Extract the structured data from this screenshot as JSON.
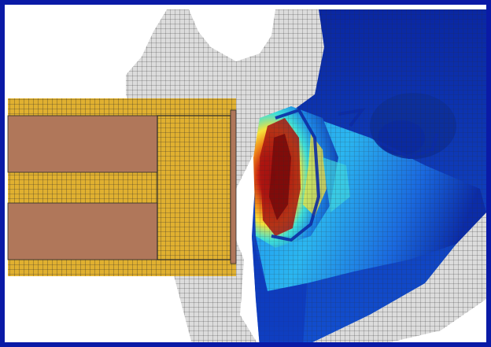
{
  "figure": {
    "description_visible_text": "",
    "colors": {
      "frame": "#0a1aa6",
      "background": "#ffffff",
      "mesh_line": "#2a2a2a",
      "ejected_mesh_fill": "#d9d9d9",
      "projectile_shell": "#e0b030",
      "projectile_core": "#b0775a",
      "cold": "#0b2ca8",
      "hot": "#8a0d0d"
    }
  }
}
